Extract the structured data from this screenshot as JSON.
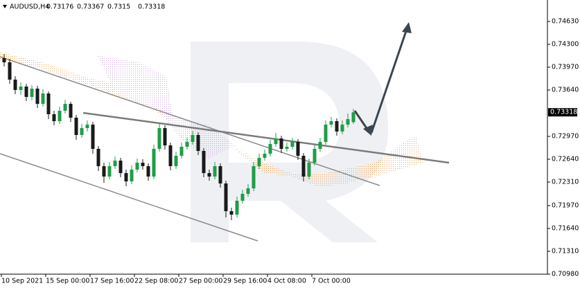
{
  "chart_data": {
    "type": "candlestick",
    "title": "AUDUSD,H4",
    "categories": [
      "10 Sep 2021",
      null,
      null,
      null,
      null,
      null,
      null,
      null,
      "15 Sep 00:00",
      null,
      null,
      null,
      null,
      null,
      null,
      null,
      "17 Sep 16:00",
      null,
      null,
      null,
      null,
      null,
      null,
      null,
      "22 Sep 08:00",
      null,
      null,
      null,
      null,
      null,
      null,
      null,
      "27 Sep 00:00",
      null,
      null,
      null,
      null,
      null,
      null,
      null,
      "29 Sep 16:00",
      null,
      null,
      null,
      null,
      null,
      null,
      null,
      "4 Oct 08:00",
      null,
      null,
      null,
      null,
      null,
      null,
      null,
      "7 Oct 00:00",
      null,
      null,
      null,
      null,
      null,
      null,
      null
    ],
    "open": [
      0.741,
      0.7404,
      0.7379,
      0.7364,
      0.7369,
      0.7354,
      0.7366,
      0.7344,
      0.7359,
      0.7329,
      0.7319,
      0.7334,
      0.7344,
      0.7324,
      0.7299,
      0.7309,
      0.7314,
      0.7279,
      0.7254,
      0.7239,
      0.7254,
      0.7262,
      0.7244,
      0.7232,
      0.7249,
      0.7259,
      0.7254,
      0.7239,
      0.7279,
      0.7309,
      0.7284,
      0.7254,
      0.7269,
      0.7282,
      0.7289,
      0.7299,
      0.7276,
      0.7244,
      0.7239,
      0.7254,
      0.7229,
      0.7189,
      0.7184,
      0.7204,
      0.7214,
      0.7222,
      0.7254,
      0.7266,
      0.7272,
      0.7286,
      0.7294,
      0.7279,
      0.7282,
      0.7289,
      0.7269,
      0.7239,
      0.7259,
      0.7279,
      0.7289,
      0.7314,
      0.7319,
      0.7304,
      0.7314,
      0.73176
    ],
    "high": [
      0.7416,
      0.7409,
      0.7384,
      0.7375,
      0.7373,
      0.7371,
      0.737,
      0.7365,
      0.7362,
      0.7334,
      0.734,
      0.735,
      0.7347,
      0.7328,
      0.7315,
      0.732,
      0.7318,
      0.7283,
      0.7259,
      0.726,
      0.7268,
      0.7266,
      0.7249,
      0.7255,
      0.7265,
      0.7264,
      0.7258,
      0.7285,
      0.7315,
      0.7313,
      0.7288,
      0.7275,
      0.7288,
      0.7295,
      0.7305,
      0.7303,
      0.728,
      0.7249,
      0.726,
      0.7258,
      0.7233,
      0.7194,
      0.721,
      0.722,
      0.7228,
      0.726,
      0.7272,
      0.7278,
      0.7292,
      0.7302,
      0.7298,
      0.7288,
      0.7295,
      0.7293,
      0.7273,
      0.7265,
      0.7285,
      0.7295,
      0.732,
      0.7325,
      0.7323,
      0.732,
      0.733,
      0.73367
    ],
    "low": [
      0.7398,
      0.7373,
      0.7358,
      0.7357,
      0.7348,
      0.7349,
      0.7338,
      0.734,
      0.7322,
      0.7313,
      0.7315,
      0.733,
      0.7318,
      0.7292,
      0.7295,
      0.7304,
      0.7272,
      0.7247,
      0.723,
      0.7235,
      0.725,
      0.7238,
      0.7225,
      0.7228,
      0.7245,
      0.7249,
      0.7233,
      0.7235,
      0.7275,
      0.7278,
      0.7248,
      0.725,
      0.7265,
      0.7278,
      0.7285,
      0.727,
      0.7238,
      0.7233,
      0.7235,
      0.7223,
      0.718,
      0.7176,
      0.718,
      0.72,
      0.721,
      0.7218,
      0.725,
      0.7262,
      0.7268,
      0.7282,
      0.7273,
      0.7275,
      0.7278,
      0.7263,
      0.7232,
      0.7235,
      0.7255,
      0.7275,
      0.7285,
      0.731,
      0.7298,
      0.73,
      0.731,
      0.7315
    ],
    "close": [
      0.7404,
      0.7379,
      0.7364,
      0.7369,
      0.7354,
      0.7366,
      0.7344,
      0.7359,
      0.7329,
      0.7319,
      0.7334,
      0.7344,
      0.7324,
      0.7299,
      0.7309,
      0.7314,
      0.7279,
      0.7254,
      0.7239,
      0.7254,
      0.7262,
      0.7244,
      0.7232,
      0.7249,
      0.7259,
      0.7254,
      0.7239,
      0.7279,
      0.7309,
      0.7284,
      0.7254,
      0.7269,
      0.7282,
      0.7289,
      0.7299,
      0.7276,
      0.7244,
      0.7239,
      0.7254,
      0.7229,
      0.7189,
      0.7184,
      0.7204,
      0.7214,
      0.7222,
      0.7254,
      0.7266,
      0.7272,
      0.7286,
      0.7294,
      0.7279,
      0.7282,
      0.7289,
      0.7269,
      0.7239,
      0.7259,
      0.7279,
      0.7289,
      0.7314,
      0.7319,
      0.7304,
      0.7314,
      0.7322,
      0.73318
    ],
    "up_color": "#1f9d48",
    "down_color": "#1a1a1a",
    "ylim": [
      0.7098,
      0.7494
    ],
    "yticks": [
      {
        "value": 0.7463,
        "label": "0.74630"
      },
      {
        "value": 0.743,
        "label": "0.74300"
      },
      {
        "value": 0.7397,
        "label": "0.73970"
      },
      {
        "value": 0.7364,
        "label": "0.73640"
      },
      {
        "value": 0.7297,
        "label": "0.72970"
      },
      {
        "value": 0.7264,
        "label": "0.72640"
      },
      {
        "value": 0.7231,
        "label": "0.72310"
      },
      {
        "value": 0.7197,
        "label": "0.71970"
      },
      {
        "value": 0.7164,
        "label": "0.71640"
      },
      {
        "value": 0.7131,
        "label": "0.71310"
      },
      {
        "value": 0.7098,
        "label": "0.70980"
      }
    ]
  }
}
